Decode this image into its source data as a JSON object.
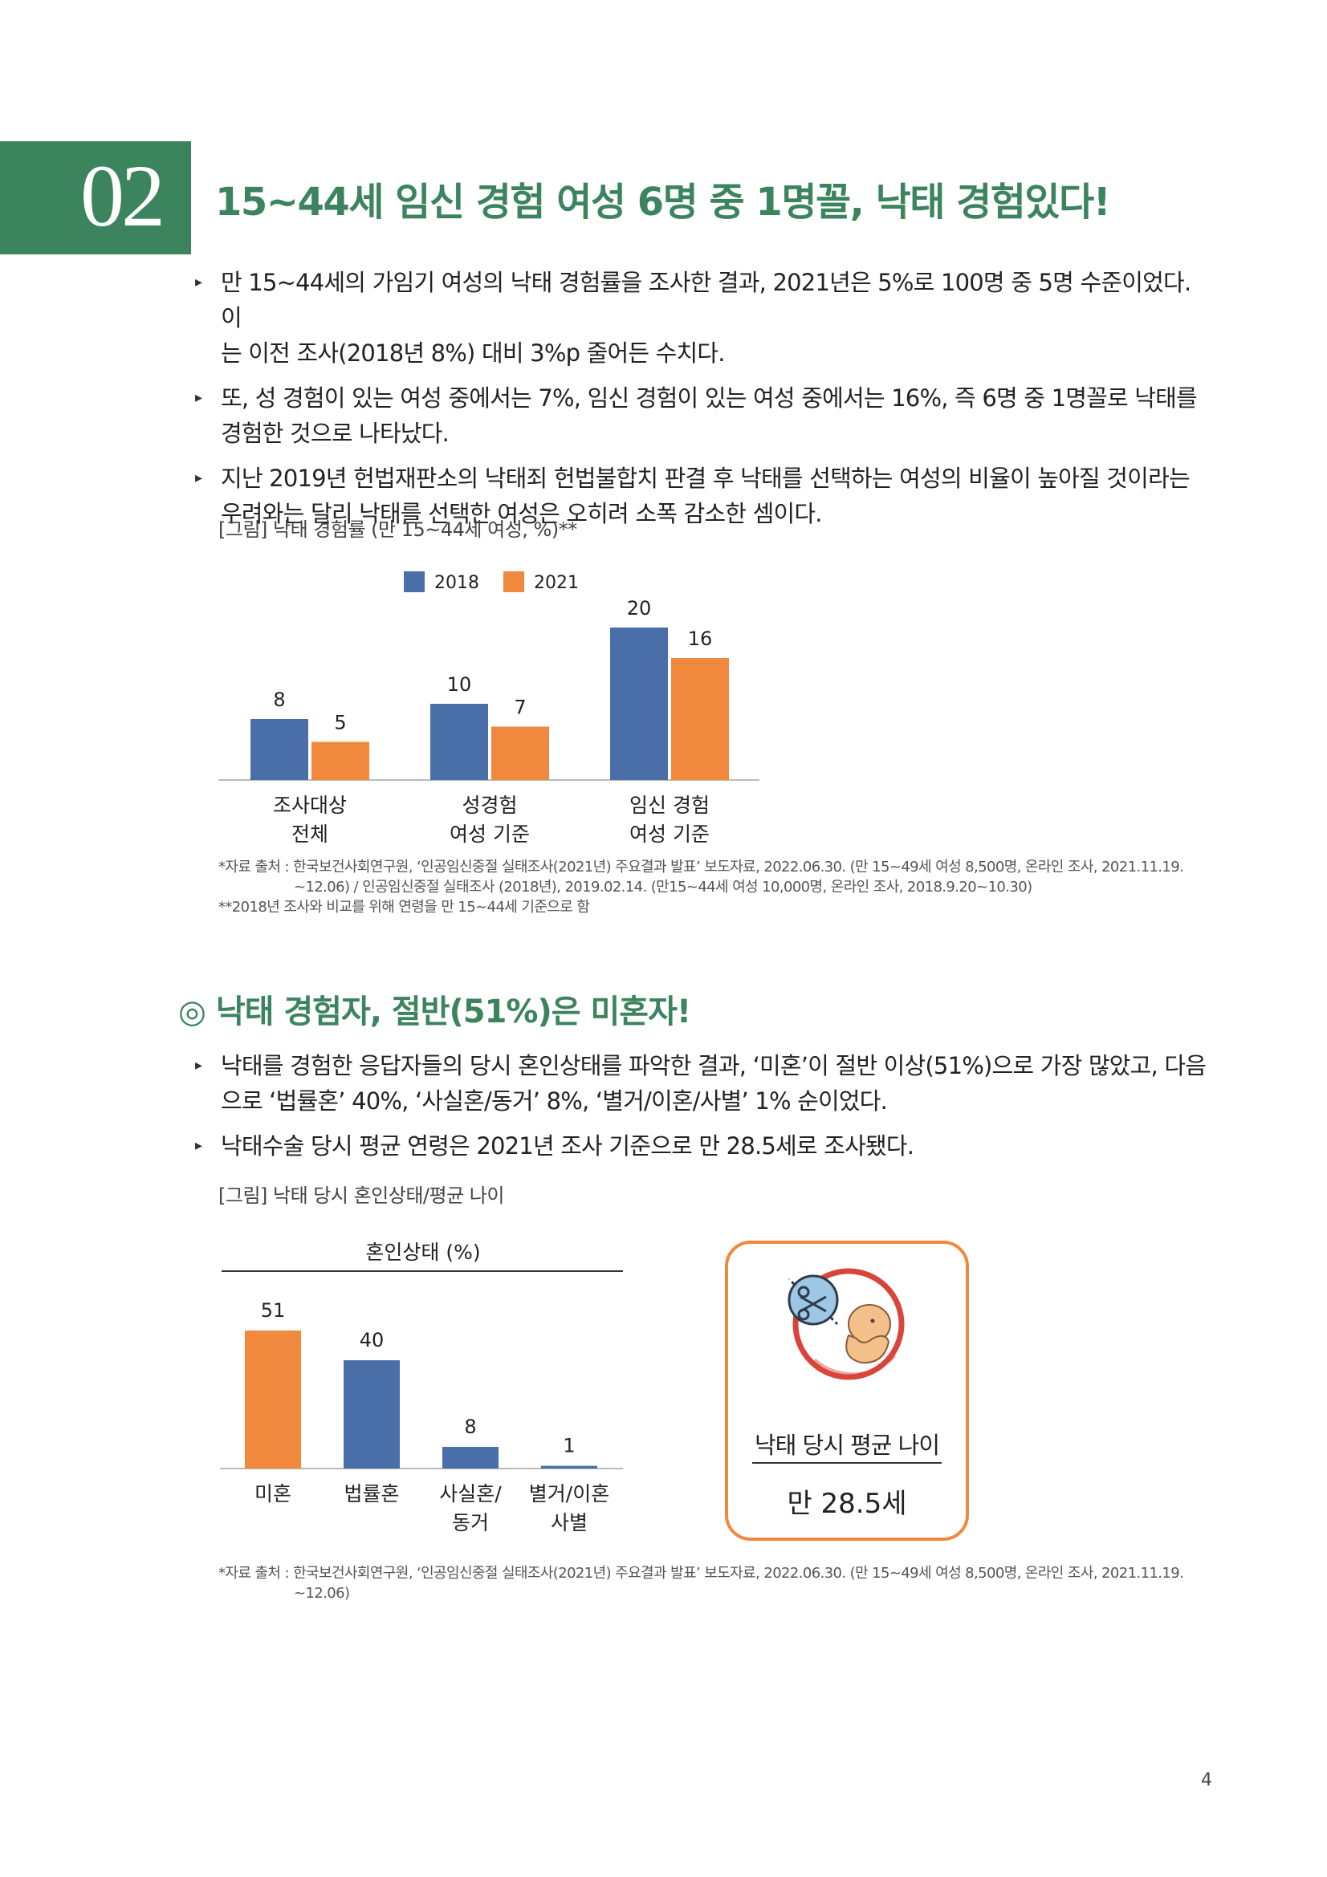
{
  "section_number": "02",
  "title": "15~44세 임신 경험 여성 6명 중 1명꼴, 낙태 경험있다!",
  "bullets1": [
    {
      "line1": "만 15~44세의 가임기 여성의 낙태 경험률을 조사한 결과, 2021년은 5%로 100명 중 5명 수준이었다. 이",
      "line2": "는 이전 조사(2018년 8%) 대비 3%p 줄어든 수치다."
    },
    {
      "line1": "또, 성 경험이 있는 여성 중에서는 7%, 임신 경험이 있는 여성 중에서는 16%, 즉 6명 중 1명꼴로 낙태를",
      "line2": "경험한 것으로 나타났다."
    },
    {
      "line1": "지난 2019년 헌법재판소의 낙태죄 헌법불합치 판결 후 낙태를 선택하는 여성의 비율이 높아질 것이라는",
      "line2": "우려와는 달리 낙태를 선택한 여성은 오히려 소폭 감소한 셈이다."
    }
  ],
  "fig1_caption": "[그림] 낙태 경험률 (만 15~44세 여성, %)**",
  "fig1_sources": [
    "*자료 출처 : 한국보건사회연구원, ‘인공임신중절 실태조사(2021년) 주요결과 발표’ 보도자료, 2022.06.30. (만 15~49세 여성 8,500명, 온라인 조사, 2021.11.19.",
    "~12.06) / 인공임신중절 실태조사 (2018년), 2019.02.14. (만15~44세 여성 10,000명, 온라인 조사, 2018.9.20~10.30)",
    "**2018년 조사와 비교를 위해 연령을 만 15~44세 기준으로 함"
  ],
  "section2_title": "◎ 낙태 경험자, 절반(51%)은 미혼자!",
  "bullets2": [
    {
      "line1": "낙태를 경험한 응답자들의 당시 혼인상태를 파악한 결과, ‘미혼’이 절반 이상(51%)으로 가장 많았고, 다음",
      "line2": "으로 ‘법률혼’ 40%, ‘사실혼/동거’ 8%, ‘별거/이혼/사별’ 1% 순이었다."
    },
    {
      "line1": "낙태수술 당시 평균 연령은 2021년 조사 기준으로 만 28.5세로 조사됐다.",
      "line2": ""
    }
  ],
  "fig2_caption": "[그림] 낙태 당시 혼인상태/평균 나이",
  "fig2_source": [
    "*자료 출처 : 한국보건사회연구원, ‘인공임신중절 실태조사(2021년) 주요결과 발표’ 보도자료, 2022.06.30. (만 15~49세 여성 8,500명, 온라인 조사, 2021.11.19.",
    "~12.06)"
  ],
  "age_box": {
    "label": "낙태 당시 평균 나이",
    "value": "만 28.5세",
    "icon": "fetus-scissors-icon"
  },
  "page_number": "4",
  "colors": {
    "green": "#3c845e",
    "blue": "#4a6fa8",
    "orange": "#f0883e"
  },
  "chart_data": [
    {
      "type": "bar",
      "categories": [
        [
          "조사대상",
          "전체"
        ],
        [
          "성경험",
          "여성 기준"
        ],
        [
          "임신 경험",
          "여성 기준"
        ]
      ],
      "series": [
        {
          "name": "2018",
          "values": [
            8,
            10,
            20
          ],
          "color": "#4a6fa8"
        },
        {
          "name": "2021",
          "values": [
            5,
            7,
            16
          ],
          "color": "#f0883e"
        }
      ],
      "ylim": [
        0,
        20
      ],
      "legend": "top"
    },
    {
      "type": "bar",
      "title": "혼인상태 (%)",
      "categories": [
        [
          "미혼"
        ],
        [
          "법률혼"
        ],
        [
          "사실혼/",
          "동거"
        ],
        [
          "별거/이혼",
          "사별"
        ]
      ],
      "values": [
        51,
        40,
        8,
        1
      ],
      "colors": [
        "#f0883e",
        "#4a6fa8",
        "#4a6fa8",
        "#4a6fa8"
      ],
      "ylim": [
        0,
        51
      ]
    }
  ]
}
